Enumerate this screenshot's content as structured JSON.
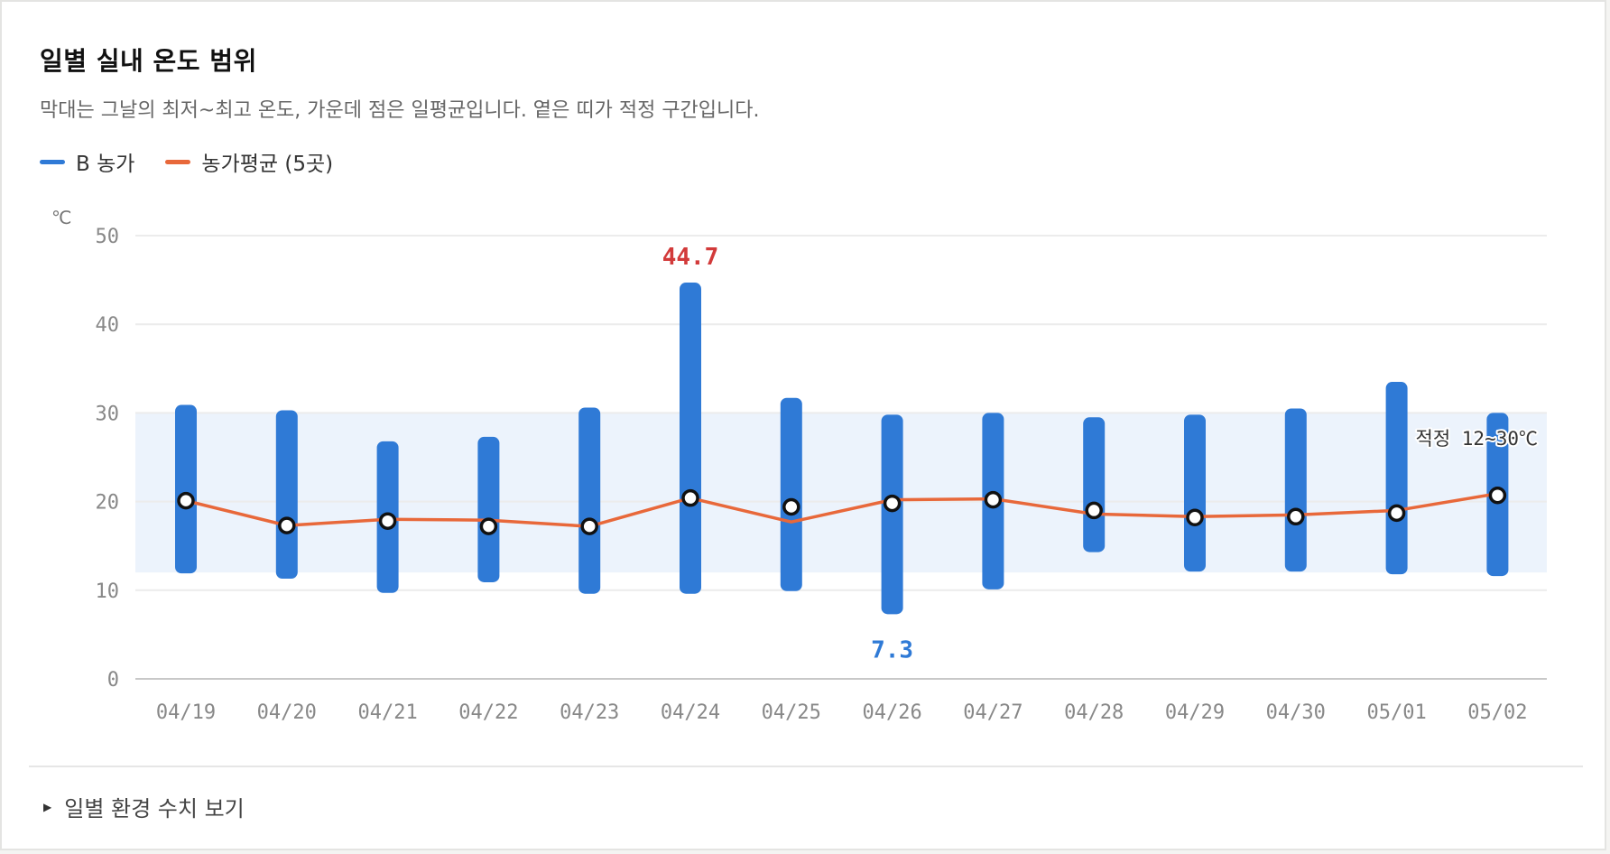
{
  "header": {
    "title": "일별 실내 온도 범위",
    "subtitle": "막대는 그날의 최저~최고 온도, 가운데 점은 일평균입니다. 옅은 띠가 적정 구간입니다."
  },
  "legend": [
    {
      "label": "B 농가",
      "color": "#2f7ad6"
    },
    {
      "label": "농가평균 (5곳)",
      "color": "#e8683a"
    }
  ],
  "colors": {
    "bar": "#2f7ad6",
    "avg_line": "#e8683a",
    "band": "#ecf3fc",
    "max_label": "#d23a3a",
    "min_label": "#2f7ad6",
    "grid": "#ececec",
    "axis": "#c8c8c8",
    "tick_text": "#888888"
  },
  "chart_data": {
    "type": "bar",
    "unit": "℃",
    "ylim": [
      0,
      50
    ],
    "yticks": [
      0,
      10,
      20,
      30,
      40,
      50
    ],
    "grid": true,
    "categories": [
      "04/19",
      "04/20",
      "04/21",
      "04/22",
      "04/23",
      "04/24",
      "04/25",
      "04/26",
      "04/27",
      "04/28",
      "04/29",
      "04/30",
      "05/01",
      "05/02"
    ],
    "series": [
      {
        "name": "B 농가",
        "min": [
          11.9,
          11.3,
          9.7,
          10.9,
          9.6,
          9.6,
          9.9,
          7.3,
          10.1,
          14.3,
          12.1,
          12.1,
          11.8,
          11.6
        ],
        "max": [
          30.9,
          30.3,
          26.8,
          27.3,
          30.6,
          44.7,
          31.7,
          29.8,
          30.0,
          29.5,
          29.8,
          30.5,
          33.5,
          30.0
        ],
        "mean": [
          20.1,
          17.3,
          17.8,
          17.2,
          17.2,
          20.4,
          19.4,
          19.8,
          20.2,
          19.0,
          18.2,
          18.3,
          18.7,
          20.7
        ]
      },
      {
        "name": "농가평균 (5곳)",
        "values": [
          20.1,
          17.3,
          18.0,
          17.9,
          17.2,
          20.4,
          17.7,
          20.2,
          20.3,
          18.6,
          18.3,
          18.5,
          19.0,
          20.9
        ]
      }
    ],
    "optimal_band": {
      "range": [
        12,
        30
      ],
      "label": "적정  12~30℃"
    },
    "annotations": [
      {
        "label": "44.7",
        "category": "04/24",
        "value": 44.7,
        "kind": "max"
      },
      {
        "label": "7.3",
        "category": "04/26",
        "value": 7.3,
        "kind": "min"
      }
    ]
  },
  "footer": {
    "details_label": "일별 환경 수치 보기"
  }
}
